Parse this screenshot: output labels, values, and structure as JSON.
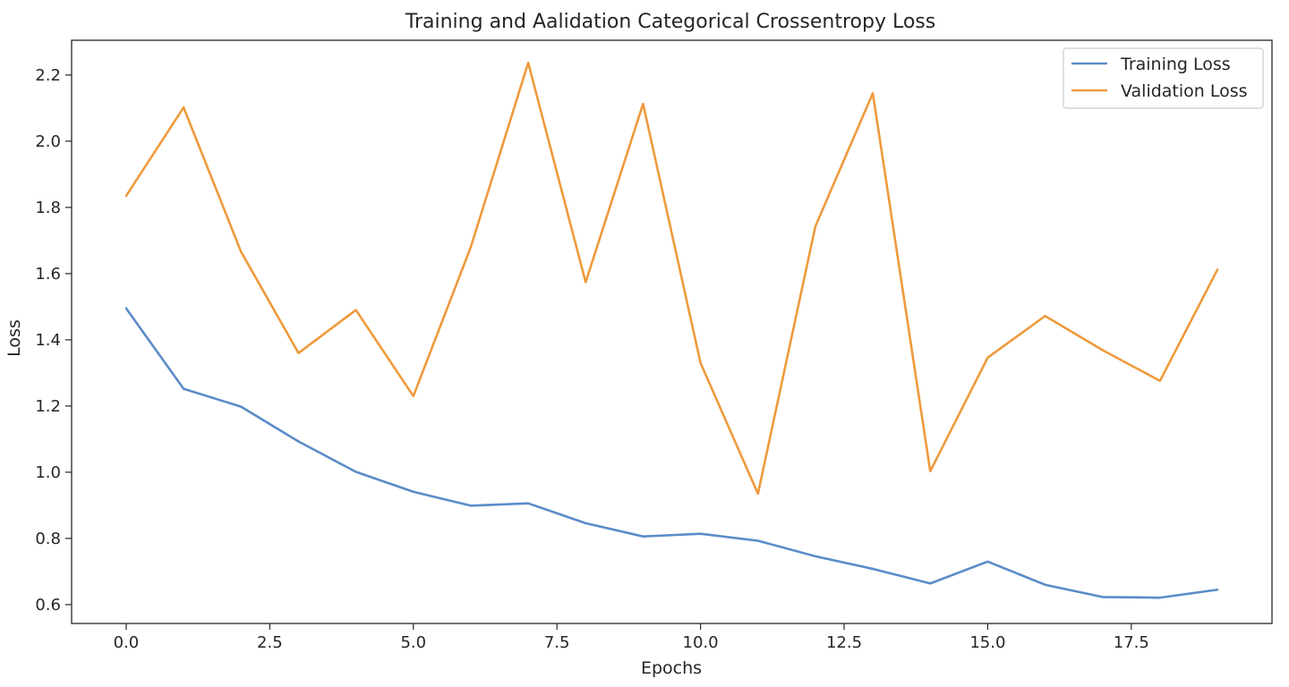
{
  "chart_data": {
    "type": "line",
    "title": "Training and Aalidation Categorical Crossentropy Loss",
    "xlabel": "Epochs",
    "ylabel": "Loss",
    "xlim": [
      -0.95,
      19.95
    ],
    "ylim": [
      0.543,
      2.305
    ],
    "xticks": [
      0.0,
      2.5,
      5.0,
      7.5,
      10.0,
      12.5,
      15.0,
      17.5
    ],
    "xtick_labels": [
      "0.0",
      "2.5",
      "5.0",
      "7.5",
      "10.0",
      "12.5",
      "15.0",
      "17.5"
    ],
    "yticks": [
      0.6,
      0.8,
      1.0,
      1.2,
      1.4,
      1.6,
      1.8,
      2.0,
      2.2
    ],
    "ytick_labels": [
      "0.6",
      "0.8",
      "1.0",
      "1.2",
      "1.4",
      "1.6",
      "1.8",
      "2.0",
      "2.2"
    ],
    "grid": false,
    "legend_position": "top-right",
    "x": [
      0,
      1,
      2,
      3,
      4,
      5,
      6,
      7,
      8,
      9,
      10,
      11,
      12,
      13,
      14,
      15,
      16,
      17,
      18,
      19
    ],
    "series": [
      {
        "name": "Training Loss",
        "color": "#5b8cc8",
        "values": [
          1.495,
          1.252,
          1.198,
          1.093,
          1.001,
          0.941,
          0.899,
          0.906,
          0.846,
          0.806,
          0.814,
          0.793,
          0.746,
          0.708,
          0.664,
          0.73,
          0.66,
          0.623,
          0.621,
          0.645
        ]
      },
      {
        "name": "Validation Loss",
        "color": "#ee9a3c",
        "values": [
          1.835,
          2.102,
          1.666,
          1.36,
          1.49,
          1.23,
          1.68,
          2.237,
          1.574,
          2.113,
          1.33,
          0.935,
          1.743,
          2.145,
          1.003,
          1.346,
          1.472,
          1.369,
          1.276,
          1.612
        ]
      }
    ]
  }
}
